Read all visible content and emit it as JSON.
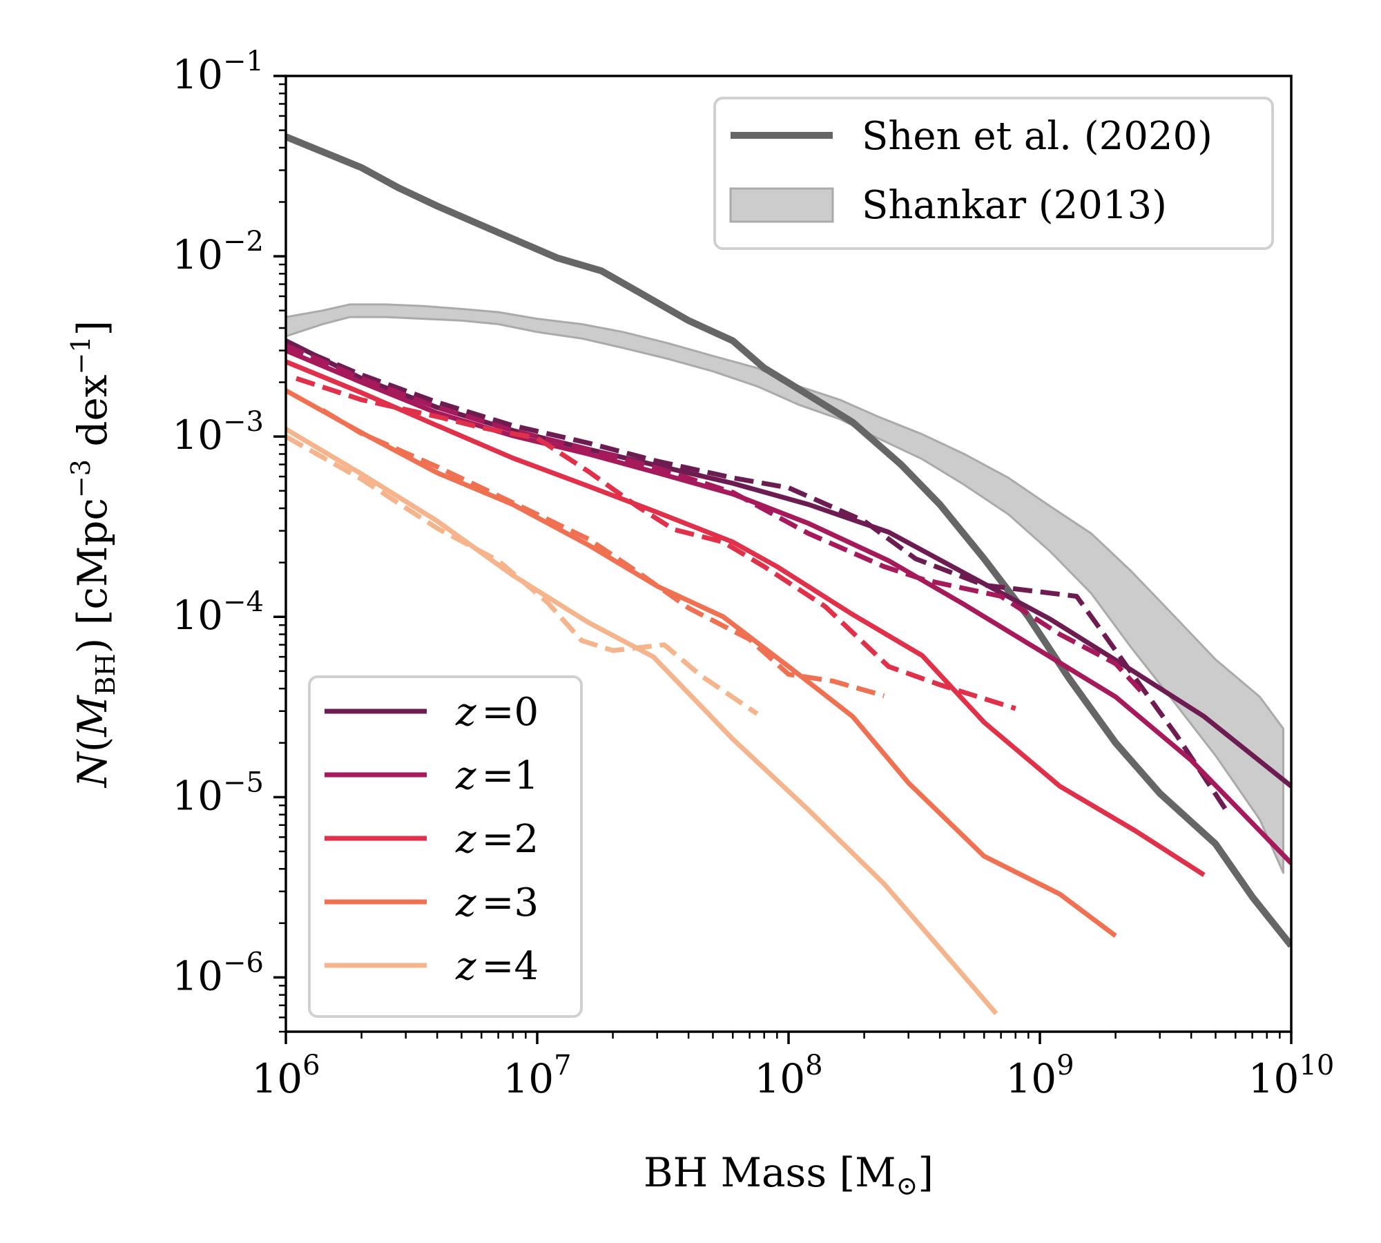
{
  "chart_data": {
    "type": "line",
    "xscale": "log",
    "yscale": "log",
    "xlim": [
      1000000,
      10000000000
    ],
    "ylim": [
      5e-07,
      0.1
    ],
    "xlabel_parts": {
      "main": "BH Mass [M",
      "sub": "⊙",
      "close": "]"
    },
    "ylabel_parts": {
      "n": "N",
      "open": "(",
      "m": "M",
      "sub": "BH",
      "mid": ") [cMpc",
      "sup1": "−3",
      "dex": " dex",
      "sup2": "−1",
      "close": "]"
    },
    "x_ticks": [
      {
        "base": "10",
        "exp": "6",
        "value": 1000000
      },
      {
        "base": "10",
        "exp": "7",
        "value": 10000000
      },
      {
        "base": "10",
        "exp": "8",
        "value": 100000000
      },
      {
        "base": "10",
        "exp": "9",
        "value": 1000000000
      },
      {
        "base": "10",
        "exp": "10",
        "value": 10000000000
      }
    ],
    "y_ticks": [
      {
        "base": "10",
        "exp": "−1",
        "value": 0.1
      },
      {
        "base": "10",
        "exp": "−2",
        "value": 0.01
      },
      {
        "base": "10",
        "exp": "−3",
        "value": 0.001
      },
      {
        "base": "10",
        "exp": "−4",
        "value": 0.0001
      },
      {
        "base": "10",
        "exp": "−5",
        "value": 1e-05
      },
      {
        "base": "10",
        "exp": "−6",
        "value": 1e-06
      }
    ],
    "reference": {
      "shen": {
        "label": "Shen et al. (2020)",
        "color": "#666666",
        "points": [
          [
            1000000.0,
            0.046
          ],
          [
            1400000.0,
            0.038
          ],
          [
            2000000.0,
            0.031
          ],
          [
            2800000.0,
            0.024
          ],
          [
            4000000.0,
            0.019
          ],
          [
            5600000.0,
            0.0155
          ],
          [
            8000000.0,
            0.0125
          ],
          [
            12000000.0,
            0.0098
          ],
          [
            18000000.0,
            0.0083
          ],
          [
            26000000.0,
            0.0062
          ],
          [
            40000000.0,
            0.0044
          ],
          [
            60000000.0,
            0.0034
          ],
          [
            80000000.0,
            0.0024
          ],
          [
            120000000.0,
            0.0017
          ],
          [
            180000000.0,
            0.0012
          ],
          [
            280000000.0,
            0.0007
          ],
          [
            400000000.0,
            0.00042
          ],
          [
            600000000.0,
            0.00021
          ],
          [
            900000000.0,
            0.0001
          ],
          [
            1300000000.0,
            4.6e-05
          ],
          [
            2000000000.0,
            2e-05
          ],
          [
            3000000000.0,
            1.05e-05
          ],
          [
            5000000000.0,
            5.5e-06
          ],
          [
            7000000000.0,
            2.8e-06
          ],
          [
            10000000000.0,
            1.5e-06
          ]
        ]
      },
      "shankar": {
        "label": "Shankar (2013)",
        "color": "#aaaaaa",
        "upper": [
          [
            1000000.0,
            0.0046
          ],
          [
            1400000.0,
            0.005
          ],
          [
            1800000.0,
            0.0054
          ],
          [
            2500000.0,
            0.0054
          ],
          [
            3500000.0,
            0.0053
          ],
          [
            5000000.0,
            0.0051
          ],
          [
            7000000.0,
            0.0049
          ],
          [
            10000000.0,
            0.0045
          ],
          [
            15000000.0,
            0.0042
          ],
          [
            22000000.0,
            0.0038
          ],
          [
            33000000.0,
            0.0033
          ],
          [
            50000000.0,
            0.0028
          ],
          [
            75000000.0,
            0.0024
          ],
          [
            110000000.0,
            0.0019
          ],
          [
            160000000.0,
            0.0016
          ],
          [
            230000000.0,
            0.00128
          ],
          [
            340000000.0,
            0.00103
          ],
          [
            500000000.0,
            0.0008
          ],
          [
            750000000.0,
            0.00059
          ],
          [
            1100000000.0,
            0.00041
          ],
          [
            1600000000.0,
            0.00029
          ],
          [
            2300000000.0,
            0.00018
          ],
          [
            3400000000.0,
            0.000102
          ],
          [
            5000000000.0,
            5.8e-05
          ],
          [
            7500000000.0,
            3.6e-05
          ],
          [
            9300000000.0,
            2.4e-05
          ]
        ],
        "lower": [
          [
            1000000.0,
            0.0036
          ],
          [
            1400000.0,
            0.0042
          ],
          [
            1800000.0,
            0.0046
          ],
          [
            2500000.0,
            0.0046
          ],
          [
            3500000.0,
            0.0045
          ],
          [
            5000000.0,
            0.0044
          ],
          [
            7000000.0,
            0.0042
          ],
          [
            10000000.0,
            0.0038
          ],
          [
            15000000.0,
            0.0035
          ],
          [
            22000000.0,
            0.0031
          ],
          [
            33000000.0,
            0.0027
          ],
          [
            50000000.0,
            0.0023
          ],
          [
            75000000.0,
            0.0019
          ],
          [
            110000000.0,
            0.0015
          ],
          [
            160000000.0,
            0.00125
          ],
          [
            230000000.0,
            0.00097
          ],
          [
            340000000.0,
            0.00075
          ],
          [
            500000000.0,
            0.00054
          ],
          [
            750000000.0,
            0.00037
          ],
          [
            1100000000.0,
            0.00023
          ],
          [
            1600000000.0,
            0.000135
          ],
          [
            2300000000.0,
            6.8e-05
          ],
          [
            3400000000.0,
            3.4e-05
          ],
          [
            5000000000.0,
            1.7e-05
          ],
          [
            7500000000.0,
            7.5e-06
          ],
          [
            9300000000.0,
            3.8e-06
          ]
        ]
      }
    },
    "series": [
      {
        "name": "z =0",
        "z": "0",
        "color": "#6d1c52",
        "solid": [
          [
            1000000.0,
            0.0034
          ],
          [
            2000000.0,
            0.0021
          ],
          [
            4000000.0,
            0.00145
          ],
          [
            8000000.0,
            0.00108
          ],
          [
            16000000.0,
            0.00085
          ],
          [
            30000000.0,
            0.00069
          ],
          [
            60000000.0,
            0.00055
          ],
          [
            120000000.0,
            0.00042
          ],
          [
            250000000.0,
            0.000295
          ],
          [
            500000000.0,
            0.000175
          ],
          [
            1100000000.0,
            9.7e-05
          ],
          [
            2200000000.0,
            5.3e-05
          ],
          [
            4500000000.0,
            2.8e-05
          ],
          [
            10000000000.0,
            1.15e-05
          ]
        ],
        "dashed": [
          [
            1000000.0,
            0.0033
          ],
          [
            2000000.0,
            0.0022
          ],
          [
            4000000.0,
            0.00155
          ],
          [
            8000000.0,
            0.00115
          ],
          [
            16000000.0,
            0.00092
          ],
          [
            30000000.0,
            0.00073
          ],
          [
            60000000.0,
            0.00059
          ],
          [
            100000000.0,
            0.00052
          ],
          [
            200000000.0,
            0.00034
          ],
          [
            320000000.0,
            0.00021
          ],
          [
            600000000.0,
            0.00015
          ],
          [
            1400000000.0,
            0.00013
          ],
          [
            1800000000.0,
            8e-05
          ],
          [
            2500000000.0,
            4.2e-05
          ],
          [
            3500000000.0,
            2.2e-05
          ],
          [
            5500000000.0,
            8.5e-06
          ]
        ]
      },
      {
        "name": "z =1",
        "z": "1",
        "color": "#a61a5c",
        "solid": [
          [
            1000000.0,
            0.003
          ],
          [
            2000000.0,
            0.002
          ],
          [
            4000000.0,
            0.00135
          ],
          [
            8000000.0,
            0.00101
          ],
          [
            16000000.0,
            0.0008
          ],
          [
            30000000.0,
            0.00063
          ],
          [
            60000000.0,
            0.00048
          ],
          [
            120000000.0,
            0.00033
          ],
          [
            250000000.0,
            0.000205
          ],
          [
            500000000.0,
            0.000117
          ],
          [
            1000000000.0,
            6.5e-05
          ],
          [
            2000000000.0,
            3.6e-05
          ],
          [
            4000000000.0,
            1.6e-05
          ],
          [
            10000000000.0,
            4.3e-06
          ]
        ],
        "dashed": [
          [
            1000000.0,
            0.0032
          ],
          [
            2000000.0,
            0.0021
          ],
          [
            4000000.0,
            0.00145
          ],
          [
            8000000.0,
            0.00108
          ],
          [
            16000000.0,
            0.00085
          ],
          [
            30000000.0,
            0.00067
          ],
          [
            60000000.0,
            0.00049
          ],
          [
            120000000.0,
            0.00029
          ],
          [
            240000000.0,
            0.00019
          ],
          [
            350000000.0,
            0.00016
          ],
          [
            700000000.0,
            0.00013
          ],
          [
            1200000000.0,
            8e-05
          ],
          [
            2000000000.0,
            5.5e-05
          ],
          [
            2600000000.0,
            3.7e-05
          ]
        ]
      },
      {
        "name": "z =2",
        "z": "2",
        "color": "#e0304a",
        "solid": [
          [
            1000000.0,
            0.0026
          ],
          [
            2000000.0,
            0.00175
          ],
          [
            4000000.0,
            0.00115
          ],
          [
            8000000.0,
            0.00076
          ],
          [
            16000000.0,
            0.00053
          ],
          [
            30000000.0,
            0.00038
          ],
          [
            60000000.0,
            0.00026
          ],
          [
            90000000.0,
            0.00019
          ],
          [
            180000000.0,
            0.000103
          ],
          [
            340000000.0,
            6.1e-05
          ],
          [
            600000000.0,
            2.6e-05
          ],
          [
            1200000000.0,
            1.15e-05
          ],
          [
            2400000000.0,
            6.5e-06
          ],
          [
            4500000000.0,
            3.7e-06
          ]
        ],
        "dashed": [
          [
            1100000.0,
            0.0021
          ],
          [
            2000000.0,
            0.0016
          ],
          [
            4000000.0,
            0.00129
          ],
          [
            6000000.0,
            0.00112
          ],
          [
            10000000.0,
            0.00098
          ],
          [
            16000000.0,
            0.00064
          ],
          [
            25000000.0,
            0.00041
          ],
          [
            35000000.0,
            0.000305
          ],
          [
            55000000.0,
            0.00026
          ],
          [
            80000000.0,
            0.00019
          ],
          [
            140000000.0,
            0.000114
          ],
          [
            250000000.0,
            5.3e-05
          ],
          [
            400000000.0,
            4.2e-05
          ],
          [
            800000000.0,
            3.1e-05
          ]
        ]
      },
      {
        "name": "z =3",
        "z": "3",
        "color": "#f07052",
        "solid": [
          [
            1000000.0,
            0.0018
          ],
          [
            2000000.0,
            0.00105
          ],
          [
            4000000.0,
            0.00063
          ],
          [
            8000000.0,
            0.00042
          ],
          [
            16000000.0,
            0.00025
          ],
          [
            30000000.0,
            0.000148
          ],
          [
            55000000.0,
            0.0001
          ],
          [
            100000000.0,
            5.3e-05
          ],
          [
            180000000.0,
            2.8e-05
          ],
          [
            300000000.0,
            1.2e-05
          ],
          [
            600000000.0,
            4.7e-06
          ],
          [
            1200000000.0,
            2.9e-06
          ],
          [
            2000000000.0,
            1.7e-06
          ]
        ],
        "dashed": [
          [
            1400000.0,
            0.0014
          ],
          [
            2000000.0,
            0.00104
          ],
          [
            4000000.0,
            0.00068
          ],
          [
            8000000.0,
            0.00043
          ],
          [
            16000000.0,
            0.00027
          ],
          [
            25000000.0,
            0.000178
          ],
          [
            40000000.0,
            0.000112
          ],
          [
            70000000.0,
            7.5e-05
          ],
          [
            100000000.0,
            4.8e-05
          ],
          [
            150000000.0,
            4.4e-05
          ],
          [
            240000000.0,
            3.65e-05
          ]
        ]
      },
      {
        "name": "z =4",
        "z": "4",
        "color": "#f6b48c",
        "solid": [
          [
            1000000.0,
            0.0011
          ],
          [
            2000000.0,
            0.00062
          ],
          [
            4000000.0,
            0.00034
          ],
          [
            8000000.0,
            0.00017
          ],
          [
            16000000.0,
            9.3e-05
          ],
          [
            29000000.0,
            6e-05
          ],
          [
            60000000.0,
            2.1e-05
          ],
          [
            120000000.0,
            8.5e-06
          ],
          [
            240000000.0,
            3.3e-06
          ],
          [
            450000000.0,
            1.2e-06
          ],
          [
            670000000.0,
            6.3e-07
          ]
        ],
        "dashed": [
          [
            1000000.0,
            0.001
          ],
          [
            2000000.0,
            0.00058
          ],
          [
            4000000.0,
            0.00031
          ],
          [
            7000000.0,
            0.000205
          ],
          [
            11000000.0,
            0.00012
          ],
          [
            15000000.0,
            7.4e-05
          ],
          [
            20000000.0,
            6.5e-05
          ],
          [
            32000000.0,
            7e-05
          ],
          [
            45000000.0,
            4.7e-05
          ],
          [
            75000000.0,
            2.9e-05
          ]
        ]
      }
    ]
  }
}
